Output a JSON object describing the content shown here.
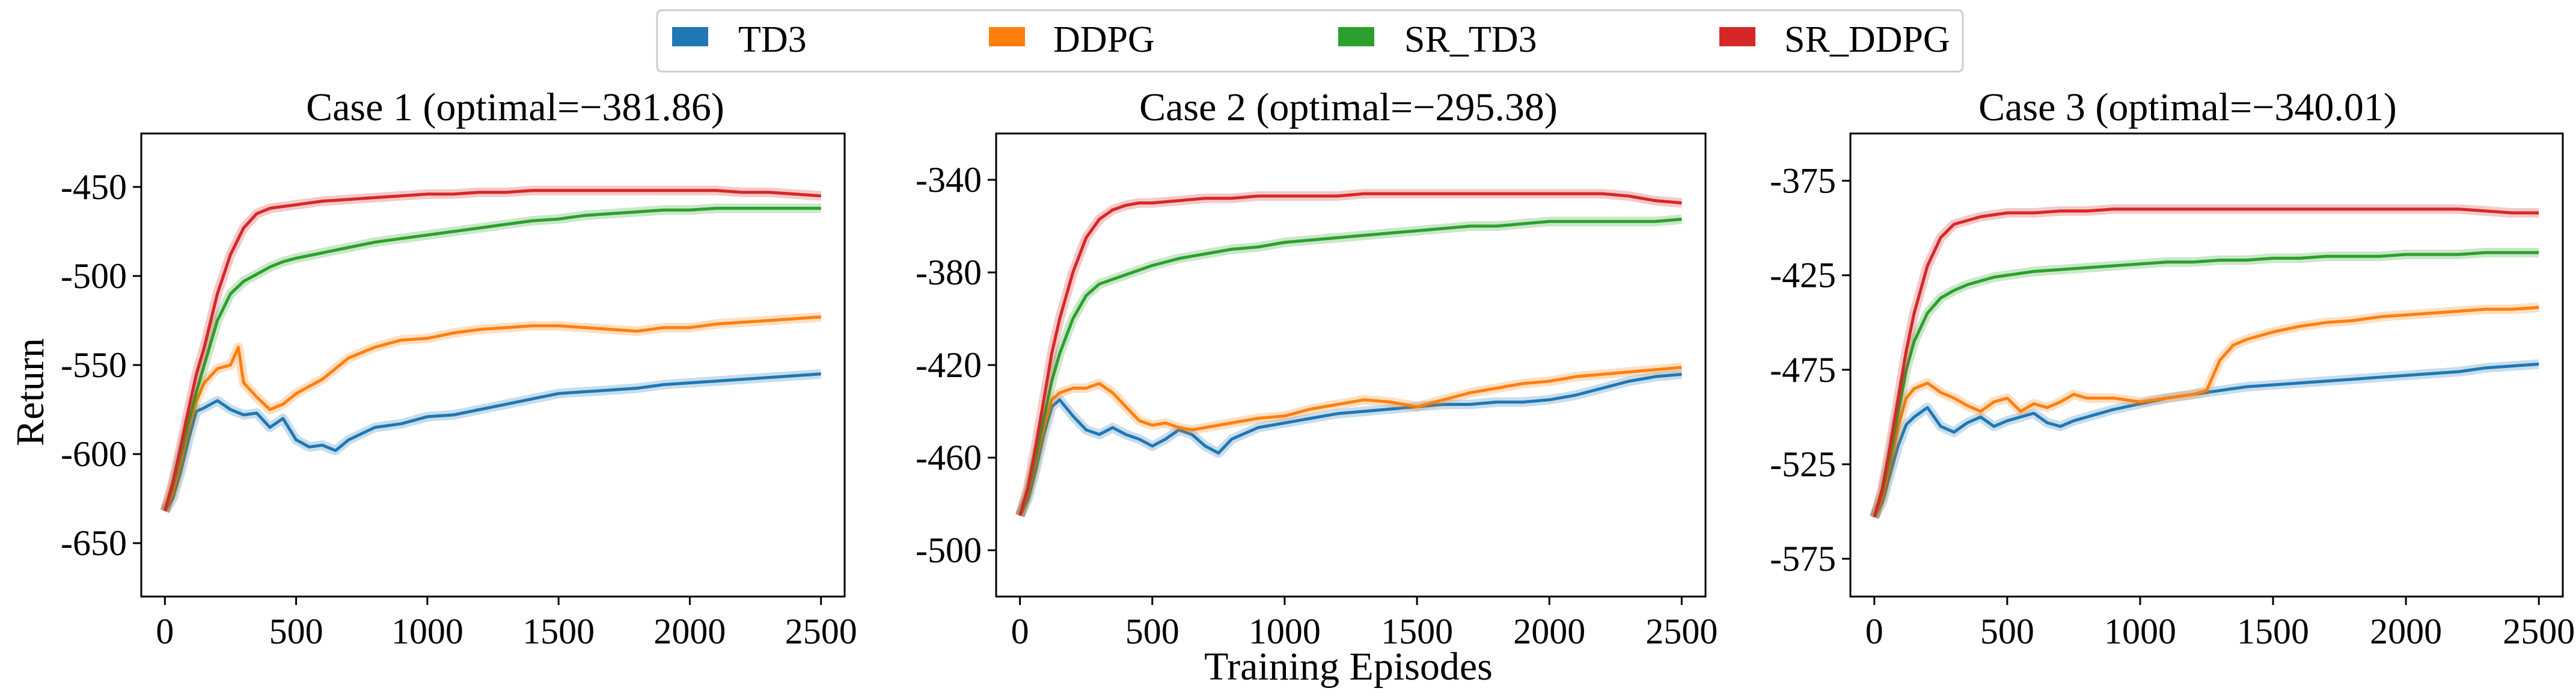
{
  "figure": {
    "shared_xlabel": "Training Episodes",
    "shared_ylabel": "Return"
  },
  "legend": {
    "entries": [
      "TD3",
      "DDPG",
      "SR_TD3",
      "SR_DDPG"
    ]
  },
  "chart_data": [
    {
      "type": "line",
      "title": "Case 1 (optimal=−381.86)",
      "xlabel": "Training Episodes",
      "ylabel": "Return",
      "xlim": [
        -90,
        2590
      ],
      "ylim": [
        -680,
        -420
      ],
      "xticks": [
        0,
        500,
        1000,
        1500,
        2000,
        2500
      ],
      "yticks": [
        -650,
        -600,
        -550,
        -500,
        -450
      ],
      "grid": false,
      "legend": "top-center",
      "series": [
        {
          "name": "TD3",
          "color": "#1f77b4",
          "x": [
            0,
            30,
            60,
            90,
            120,
            150,
            200,
            250,
            300,
            350,
            400,
            450,
            500,
            550,
            600,
            650,
            700,
            800,
            900,
            1000,
            1100,
            1200,
            1300,
            1400,
            1500,
            1600,
            1700,
            1800,
            1900,
            2000,
            2100,
            2200,
            2300,
            2400,
            2500
          ],
          "y": [
            -632,
            -625,
            -610,
            -592,
            -576,
            -574,
            -570,
            -575,
            -578,
            -577,
            -585,
            -580,
            -592,
            -596,
            -595,
            -598,
            -592,
            -585,
            -583,
            -579,
            -578,
            -575,
            -572,
            -569,
            -566,
            -565,
            -564,
            -563,
            -561,
            -560,
            -559,
            -558,
            -557,
            -556,
            -555
          ]
        },
        {
          "name": "DDPG",
          "color": "#ff7f0e",
          "x": [
            0,
            30,
            60,
            90,
            120,
            150,
            200,
            250,
            280,
            300,
            350,
            400,
            450,
            500,
            550,
            600,
            650,
            700,
            800,
            900,
            1000,
            1100,
            1200,
            1300,
            1400,
            1500,
            1600,
            1700,
            1800,
            1900,
            2000,
            2100,
            2200,
            2300,
            2400,
            2500
          ],
          "y": [
            -632,
            -622,
            -605,
            -585,
            -570,
            -560,
            -552,
            -550,
            -540,
            -560,
            -568,
            -575,
            -572,
            -566,
            -562,
            -558,
            -552,
            -546,
            -540,
            -536,
            -535,
            -532,
            -530,
            -529,
            -528,
            -528,
            -529,
            -530,
            -531,
            -529,
            -529,
            -527,
            -526,
            -525,
            -524,
            -523
          ]
        },
        {
          "name": "SR_TD3",
          "color": "#2ca02c",
          "x": [
            0,
            30,
            60,
            90,
            120,
            150,
            200,
            250,
            300,
            350,
            400,
            450,
            500,
            600,
            700,
            800,
            900,
            1000,
            1100,
            1200,
            1300,
            1400,
            1500,
            1600,
            1700,
            1800,
            1900,
            2000,
            2100,
            2200,
            2300,
            2400,
            2500
          ],
          "y": [
            -632,
            -618,
            -600,
            -582,
            -565,
            -550,
            -525,
            -510,
            -503,
            -499,
            -495,
            -492,
            -490,
            -487,
            -484,
            -481,
            -479,
            -477,
            -475,
            -473,
            -471,
            -469,
            -468,
            -466,
            -465,
            -464,
            -463,
            -463,
            -462,
            -462,
            -462,
            -462,
            -462
          ]
        },
        {
          "name": "SR_DDPG",
          "color": "#d62728",
          "x": [
            0,
            30,
            60,
            90,
            120,
            150,
            200,
            250,
            300,
            350,
            400,
            450,
            500,
            600,
            700,
            800,
            900,
            1000,
            1100,
            1200,
            1300,
            1400,
            1500,
            1600,
            1700,
            1800,
            1900,
            2000,
            2100,
            2200,
            2300,
            2400,
            2500
          ],
          "y": [
            -632,
            -616,
            -596,
            -575,
            -555,
            -540,
            -510,
            -488,
            -473,
            -465,
            -462,
            -461,
            -460,
            -458,
            -457,
            -456,
            -455,
            -454,
            -454,
            -453,
            -453,
            -452,
            -452,
            -452,
            -452,
            -452,
            -452,
            -452,
            -452,
            -453,
            -453,
            -454,
            -455
          ]
        }
      ]
    },
    {
      "type": "line",
      "title": "Case 2 (optimal=−295.38)",
      "xlabel": "Training Episodes",
      "ylabel": "Return",
      "xlim": [
        -90,
        2590
      ],
      "ylim": [
        -520,
        -320
      ],
      "xticks": [
        0,
        500,
        1000,
        1500,
        2000,
        2500
      ],
      "yticks": [
        -500,
        -460,
        -420,
        -380,
        -340
      ],
      "grid": false,
      "legend": "top-center",
      "series": [
        {
          "name": "TD3",
          "color": "#1f77b4",
          "x": [
            0,
            30,
            60,
            90,
            120,
            150,
            200,
            250,
            300,
            350,
            400,
            450,
            500,
            550,
            600,
            650,
            700,
            750,
            800,
            900,
            1000,
            1100,
            1200,
            1300,
            1400,
            1500,
            1600,
            1700,
            1800,
            1900,
            2000,
            2100,
            2200,
            2300,
            2400,
            2500
          ],
          "y": [
            -485,
            -478,
            -465,
            -450,
            -438,
            -435,
            -442,
            -448,
            -450,
            -447,
            -450,
            -452,
            -455,
            -452,
            -448,
            -450,
            -455,
            -458,
            -452,
            -447,
            -445,
            -443,
            -441,
            -440,
            -439,
            -438,
            -437,
            -437,
            -436,
            -436,
            -435,
            -433,
            -430,
            -427,
            -425,
            -424
          ]
        },
        {
          "name": "DDPG",
          "color": "#ff7f0e",
          "x": [
            0,
            30,
            60,
            90,
            120,
            150,
            200,
            250,
            300,
            350,
            400,
            450,
            500,
            550,
            600,
            650,
            700,
            750,
            800,
            900,
            1000,
            1100,
            1200,
            1300,
            1400,
            1500,
            1600,
            1700,
            1800,
            1900,
            2000,
            2100,
            2200,
            2300,
            2400,
            2500
          ],
          "y": [
            -485,
            -476,
            -462,
            -447,
            -435,
            -432,
            -430,
            -430,
            -428,
            -432,
            -438,
            -444,
            -446,
            -445,
            -447,
            -448,
            -447,
            -446,
            -445,
            -443,
            -442,
            -439,
            -437,
            -435,
            -436,
            -438,
            -435,
            -432,
            -430,
            -428,
            -427,
            -425,
            -424,
            -423,
            -422,
            -421
          ]
        },
        {
          "name": "SR_TD3",
          "color": "#2ca02c",
          "x": [
            0,
            30,
            60,
            90,
            120,
            150,
            200,
            250,
            300,
            350,
            400,
            450,
            500,
            600,
            700,
            800,
            900,
            1000,
            1100,
            1200,
            1300,
            1400,
            1500,
            1600,
            1700,
            1800,
            1900,
            2000,
            2100,
            2200,
            2300,
            2400,
            2500
          ],
          "y": [
            -485,
            -475,
            -460,
            -443,
            -427,
            -415,
            -400,
            -390,
            -385,
            -383,
            -381,
            -379,
            -377,
            -374,
            -372,
            -370,
            -369,
            -367,
            -366,
            -365,
            -364,
            -363,
            -362,
            -361,
            -360,
            -360,
            -359,
            -358,
            -358,
            -358,
            -358,
            -358,
            -357
          ]
        },
        {
          "name": "SR_DDPG",
          "color": "#d62728",
          "x": [
            0,
            30,
            60,
            90,
            120,
            150,
            200,
            250,
            300,
            350,
            400,
            450,
            500,
            600,
            700,
            800,
            900,
            1000,
            1100,
            1200,
            1300,
            1400,
            1500,
            1600,
            1700,
            1800,
            1900,
            2000,
            2100,
            2200,
            2300,
            2400,
            2500
          ],
          "y": [
            -485,
            -473,
            -455,
            -435,
            -415,
            -400,
            -380,
            -365,
            -357,
            -353,
            -351,
            -350,
            -350,
            -349,
            -348,
            -348,
            -347,
            -347,
            -347,
            -347,
            -346,
            -346,
            -346,
            -346,
            -346,
            -346,
            -346,
            -346,
            -346,
            -346,
            -347,
            -349,
            -350
          ]
        }
      ]
    },
    {
      "type": "line",
      "title": "Case 3 (optimal=−340.01)",
      "xlabel": "Training Episodes",
      "ylabel": "Return",
      "xlim": [
        -90,
        2590
      ],
      "ylim": [
        -595,
        -350
      ],
      "xticks": [
        0,
        500,
        1000,
        1500,
        2000,
        2500
      ],
      "yticks": [
        -575,
        -525,
        -475,
        -425,
        -375
      ],
      "grid": false,
      "legend": "top-center",
      "series": [
        {
          "name": "TD3",
          "color": "#1f77b4",
          "x": [
            0,
            30,
            60,
            90,
            120,
            150,
            200,
            250,
            300,
            350,
            400,
            450,
            500,
            550,
            600,
            650,
            700,
            750,
            800,
            900,
            1000,
            1100,
            1200,
            1300,
            1400,
            1500,
            1600,
            1700,
            1800,
            1900,
            2000,
            2100,
            2200,
            2300,
            2400,
            2500
          ],
          "y": [
            -553,
            -545,
            -530,
            -515,
            -504,
            -500,
            -495,
            -505,
            -508,
            -503,
            -500,
            -505,
            -502,
            -500,
            -498,
            -503,
            -505,
            -502,
            -500,
            -496,
            -493,
            -490,
            -488,
            -486,
            -484,
            -483,
            -482,
            -481,
            -480,
            -479,
            -478,
            -477,
            -476,
            -474,
            -473,
            -472
          ]
        },
        {
          "name": "DDPG",
          "color": "#ff7f0e",
          "x": [
            0,
            30,
            60,
            90,
            120,
            150,
            200,
            250,
            300,
            350,
            400,
            450,
            500,
            550,
            600,
            650,
            700,
            750,
            800,
            900,
            1000,
            1100,
            1200,
            1250,
            1300,
            1350,
            1400,
            1500,
            1600,
            1700,
            1800,
            1900,
            2000,
            2100,
            2200,
            2300,
            2400,
            2500
          ],
          "y": [
            -553,
            -543,
            -525,
            -505,
            -490,
            -485,
            -482,
            -487,
            -490,
            -494,
            -497,
            -492,
            -490,
            -497,
            -493,
            -495,
            -492,
            -488,
            -490,
            -490,
            -492,
            -490,
            -488,
            -486,
            -470,
            -462,
            -459,
            -455,
            -452,
            -450,
            -449,
            -447,
            -446,
            -445,
            -444,
            -443,
            -443,
            -442
          ]
        },
        {
          "name": "SR_TD3",
          "color": "#2ca02c",
          "x": [
            0,
            30,
            60,
            90,
            120,
            150,
            200,
            250,
            300,
            350,
            400,
            450,
            500,
            600,
            700,
            800,
            900,
            1000,
            1100,
            1200,
            1300,
            1400,
            1500,
            1600,
            1700,
            1800,
            1900,
            2000,
            2100,
            2200,
            2300,
            2400,
            2500
          ],
          "y": [
            -553,
            -540,
            -520,
            -497,
            -475,
            -460,
            -445,
            -437,
            -433,
            -430,
            -428,
            -426,
            -425,
            -423,
            -422,
            -421,
            -420,
            -419,
            -418,
            -418,
            -417,
            -417,
            -416,
            -416,
            -415,
            -415,
            -415,
            -414,
            -414,
            -414,
            -413,
            -413,
            -413
          ]
        },
        {
          "name": "SR_DDPG",
          "color": "#d62728",
          "x": [
            0,
            30,
            60,
            90,
            120,
            150,
            200,
            250,
            300,
            350,
            400,
            450,
            500,
            600,
            700,
            800,
            900,
            1000,
            1100,
            1200,
            1300,
            1400,
            1500,
            1600,
            1700,
            1800,
            1900,
            2000,
            2100,
            2200,
            2300,
            2400,
            2500
          ],
          "y": [
            -553,
            -538,
            -515,
            -490,
            -465,
            -445,
            -420,
            -405,
            -398,
            -396,
            -394,
            -393,
            -392,
            -392,
            -391,
            -391,
            -390,
            -390,
            -390,
            -390,
            -390,
            -390,
            -390,
            -390,
            -390,
            -390,
            -390,
            -390,
            -390,
            -390,
            -391,
            -392,
            -392
          ]
        }
      ]
    }
  ]
}
